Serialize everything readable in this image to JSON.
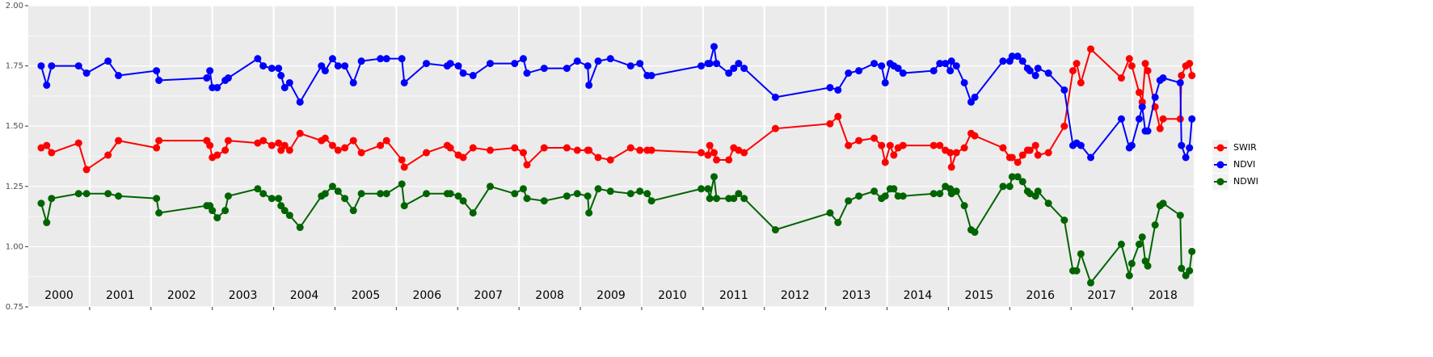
{
  "chart_data": {
    "type": "line",
    "x": [
      2000.21,
      2000.3,
      2000.38,
      2000.82,
      2000.95,
      2001.3,
      2001.47,
      2002.09,
      2002.13,
      2002.91,
      2002.96,
      2003,
      2003.08,
      2003.21,
      2003.26,
      2003.74,
      2003.83,
      2003.97,
      2004.08,
      2004.12,
      2004.18,
      2004.26,
      2004.43,
      2004.78,
      2004.84,
      2004.96,
      2005.05,
      2005.16,
      2005.3,
      2005.43,
      2005.74,
      2005.84,
      2006.09,
      2006.13,
      2006.49,
      2006.83,
      2006.88,
      2007.01,
      2007.09,
      2007.25,
      2007.53,
      2007.93,
      2008.07,
      2008.13,
      2008.41,
      2008.78,
      2008.95,
      2009.12,
      2009.14,
      2009.29,
      2009.49,
      2009.82,
      2009.97,
      2010.09,
      2010.16,
      2010.97,
      2011.08,
      2011.11,
      2011.18,
      2011.22,
      2011.42,
      2011.5,
      2011.58,
      2011.67,
      2012.18,
      2013.07,
      2013.2,
      2013.37,
      2013.54,
      2013.79,
      2013.91,
      2013.97,
      2014.05,
      2014.11,
      2014.18,
      2014.26,
      2014.76,
      2014.86,
      2014.95,
      2015.03,
      2015.05,
      2015.13,
      2015.26,
      2015.37,
      2015.43,
      2015.89,
      2016,
      2016.04,
      2016.13,
      2016.21,
      2016.29,
      2016.33,
      2016.42,
      2016.46,
      2016.63,
      2016.89,
      2017.03,
      2017.09,
      2017.16,
      2017.32,
      2017.82,
      2017.95,
      2017.99,
      2018.11,
      2018.16,
      2018.21,
      2018.25,
      2018.37,
      2018.45,
      2018.5,
      2018.78,
      2018.8,
      2018.87,
      2018.93,
      2018.97
    ],
    "series": [
      {
        "name": "SWIR",
        "color": "#ff0000",
        "values": [
          1.41,
          1.42,
          1.39,
          1.43,
          1.32,
          1.38,
          1.44,
          1.41,
          1.44,
          1.44,
          1.42,
          1.37,
          1.38,
          1.4,
          1.44,
          1.43,
          1.44,
          1.42,
          1.43,
          1.4,
          1.42,
          1.4,
          1.47,
          1.44,
          1.45,
          1.42,
          1.4,
          1.41,
          1.44,
          1.39,
          1.42,
          1.44,
          1.36,
          1.33,
          1.39,
          1.42,
          1.41,
          1.38,
          1.37,
          1.41,
          1.4,
          1.41,
          1.39,
          1.34,
          1.41,
          1.41,
          1.4,
          1.4,
          1.4,
          1.37,
          1.36,
          1.41,
          1.4,
          1.4,
          1.4,
          1.39,
          1.38,
          1.42,
          1.39,
          1.36,
          1.36,
          1.41,
          1.4,
          1.39,
          1.49,
          1.51,
          1.54,
          1.42,
          1.44,
          1.45,
          1.42,
          1.35,
          1.42,
          1.38,
          1.41,
          1.42,
          1.42,
          1.42,
          1.4,
          1.39,
          1.33,
          1.39,
          1.41,
          1.47,
          1.46,
          1.41,
          1.37,
          1.37,
          1.35,
          1.38,
          1.4,
          1.4,
          1.42,
          1.38,
          1.39,
          1.5,
          1.73,
          1.76,
          1.68,
          1.82,
          1.7,
          1.78,
          1.75,
          1.64,
          1.6,
          1.76,
          1.73,
          1.58,
          1.49,
          1.53,
          1.53,
          1.71,
          1.75,
          1.76,
          1.71
        ]
      },
      {
        "name": "NDVI",
        "color": "#0000ff",
        "values": [
          1.75,
          1.67,
          1.75,
          1.75,
          1.72,
          1.77,
          1.71,
          1.73,
          1.69,
          1.7,
          1.73,
          1.66,
          1.66,
          1.69,
          1.7,
          1.78,
          1.75,
          1.74,
          1.74,
          1.71,
          1.66,
          1.68,
          1.6,
          1.75,
          1.73,
          1.78,
          1.75,
          1.75,
          1.68,
          1.77,
          1.78,
          1.78,
          1.78,
          1.68,
          1.76,
          1.75,
          1.76,
          1.75,
          1.72,
          1.71,
          1.76,
          1.76,
          1.78,
          1.72,
          1.74,
          1.74,
          1.77,
          1.75,
          1.67,
          1.77,
          1.78,
          1.75,
          1.76,
          1.71,
          1.71,
          1.75,
          1.76,
          1.76,
          1.83,
          1.76,
          1.72,
          1.74,
          1.76,
          1.74,
          1.62,
          1.66,
          1.65,
          1.72,
          1.73,
          1.76,
          1.75,
          1.68,
          1.76,
          1.75,
          1.74,
          1.72,
          1.73,
          1.76,
          1.76,
          1.73,
          1.77,
          1.75,
          1.68,
          1.6,
          1.62,
          1.77,
          1.77,
          1.79,
          1.79,
          1.77,
          1.74,
          1.73,
          1.71,
          1.74,
          1.72,
          1.65,
          1.42,
          1.43,
          1.42,
          1.37,
          1.53,
          1.41,
          1.42,
          1.53,
          1.58,
          1.48,
          1.48,
          1.62,
          1.69,
          1.7,
          1.68,
          1.42,
          1.37,
          1.41,
          1.53
        ]
      },
      {
        "name": "NDWI",
        "color": "#006400",
        "values": [
          1.18,
          1.1,
          1.2,
          1.22,
          1.22,
          1.22,
          1.21,
          1.2,
          1.14,
          1.17,
          1.17,
          1.15,
          1.12,
          1.15,
          1.21,
          1.24,
          1.22,
          1.2,
          1.2,
          1.17,
          1.15,
          1.13,
          1.08,
          1.21,
          1.22,
          1.25,
          1.23,
          1.2,
          1.15,
          1.22,
          1.22,
          1.22,
          1.26,
          1.17,
          1.22,
          1.22,
          1.22,
          1.21,
          1.19,
          1.14,
          1.25,
          1.22,
          1.24,
          1.2,
          1.19,
          1.21,
          1.22,
          1.21,
          1.14,
          1.24,
          1.23,
          1.22,
          1.23,
          1.22,
          1.19,
          1.24,
          1.24,
          1.2,
          1.29,
          1.2,
          1.2,
          1.2,
          1.22,
          1.2,
          1.07,
          1.14,
          1.1,
          1.19,
          1.21,
          1.23,
          1.2,
          1.21,
          1.24,
          1.24,
          1.21,
          1.21,
          1.22,
          1.22,
          1.25,
          1.24,
          1.22,
          1.23,
          1.17,
          1.07,
          1.06,
          1.25,
          1.25,
          1.29,
          1.29,
          1.27,
          1.23,
          1.22,
          1.21,
          1.23,
          1.18,
          1.11,
          0.9,
          0.9,
          0.97,
          0.85,
          1.01,
          0.88,
          0.93,
          1.01,
          1.04,
          0.94,
          0.92,
          1.09,
          1.17,
          1.18,
          1.13,
          0.91,
          0.88,
          0.9,
          0.98
        ]
      }
    ],
    "xlim": [
      2000,
      2019
    ],
    "xticks": [
      {
        "value": 2000.5,
        "label": "2000"
      },
      {
        "value": 2001.5,
        "label": "2001"
      },
      {
        "value": 2002.5,
        "label": "2002"
      },
      {
        "value": 2003.5,
        "label": "2003"
      },
      {
        "value": 2004.5,
        "label": "2004"
      },
      {
        "value": 2005.5,
        "label": "2005"
      },
      {
        "value": 2006.5,
        "label": "2006"
      },
      {
        "value": 2007.5,
        "label": "2007"
      },
      {
        "value": 2008.5,
        "label": "2008"
      },
      {
        "value": 2009.5,
        "label": "2009"
      },
      {
        "value": 2010.5,
        "label": "2010"
      },
      {
        "value": 2011.5,
        "label": "2011"
      },
      {
        "value": 2012.5,
        "label": "2012"
      },
      {
        "value": 2013.5,
        "label": "2013"
      },
      {
        "value": 2014.5,
        "label": "2014"
      },
      {
        "value": 2015.5,
        "label": "2015"
      },
      {
        "value": 2016.5,
        "label": "2016"
      },
      {
        "value": 2017.5,
        "label": "2017"
      },
      {
        "value": 2018.5,
        "label": "2018"
      }
    ],
    "x_grid": [
      2001,
      2002,
      2003,
      2004,
      2005,
      2006,
      2007,
      2008,
      2009,
      2010,
      2011,
      2012,
      2013,
      2014,
      2015,
      2016,
      2017,
      2018
    ],
    "ylim": [
      0.75,
      2.0
    ],
    "yticks": [
      {
        "value": 0.75,
        "label": "0.75"
      },
      {
        "value": 1.0,
        "label": "1.00"
      },
      {
        "value": 1.25,
        "label": "1.25"
      },
      {
        "value": 1.5,
        "label": "1.50"
      },
      {
        "value": 1.75,
        "label": "1.75"
      },
      {
        "value": 2.0,
        "label": "2.00"
      }
    ],
    "grid": true,
    "legend": "right"
  }
}
